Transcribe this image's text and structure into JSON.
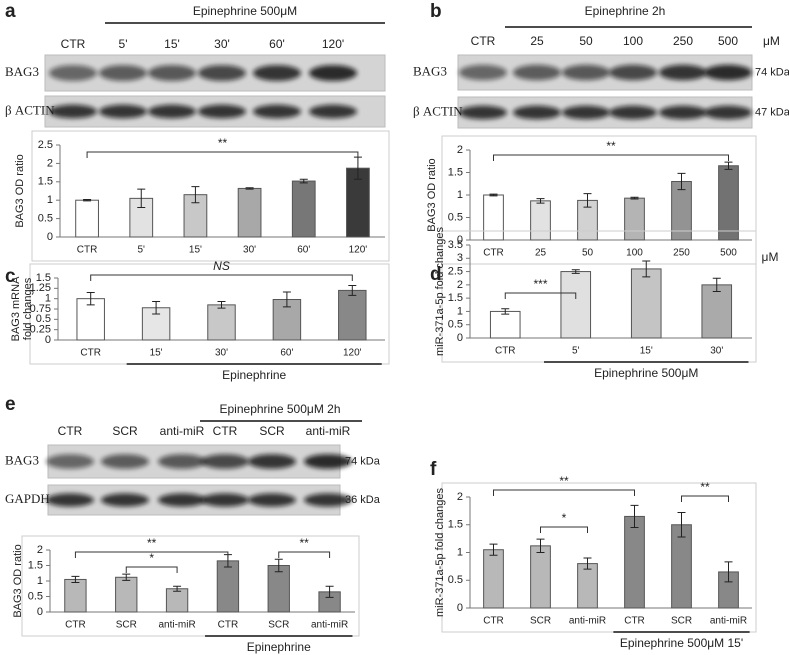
{
  "chart_data": [
    {
      "type": "bar",
      "panel": "a",
      "ylabel": [
        "BAG3  OD ratio"
      ],
      "blot": {
        "header": "Epinephrine 500μM",
        "lanes": [
          "CTR",
          "5'",
          "15'",
          "30'",
          "60'",
          "120'"
        ],
        "rows": [
          {
            "label": "BAG3"
          },
          {
            "label": "β ACTIN"
          }
        ]
      },
      "categories": [
        "CTR",
        "5'",
        "15'",
        "30'",
        "60'",
        "120'"
      ],
      "values": [
        1,
        1.05,
        1.15,
        1.32,
        1.52,
        1.87
      ],
      "errors": [
        0.02,
        0.25,
        0.22,
        0.02,
        0.05,
        0.3
      ],
      "colors": [
        "#ffffff",
        "#e2e2e2",
        "#c8c8c8",
        "#a8a8a8",
        "#777777",
        "#3a3a3a"
      ],
      "ylim": [
        0,
        2.5
      ],
      "yticks": [
        0,
        0.5,
        1,
        1.5,
        2,
        2.5
      ],
      "annotations": [
        {
          "text": "**",
          "from": 0,
          "to": 5
        }
      ]
    },
    {
      "type": "bar",
      "panel": "b",
      "ylabel": [
        "BAG3  OD ratio"
      ],
      "blot": {
        "header": "Epinephrine 2h",
        "lanes": [
          "CTR",
          "25",
          "50",
          "100",
          "250",
          "500"
        ],
        "unit": "μM",
        "rows": [
          {
            "label": "BAG3",
            "size": "74 kDa"
          },
          {
            "label": "β ACTIN",
            "size": "47 kDa"
          }
        ]
      },
      "categories": [
        "CTR",
        "25",
        "50",
        "100",
        "250",
        "500"
      ],
      "x_unit": "μM",
      "values": [
        1,
        0.87,
        0.88,
        0.93,
        1.3,
        1.65
      ],
      "errors": [
        0.02,
        0.05,
        0.15,
        0.02,
        0.18,
        0.08
      ],
      "colors": [
        "#ffffff",
        "#e2e2e2",
        "#d2d2d2",
        "#b4b4b4",
        "#939393",
        "#727272"
      ],
      "ylim": [
        0,
        2
      ],
      "yticks": [
        0,
        0.5,
        1,
        1.5,
        2
      ],
      "annotations": [
        {
          "text": "**",
          "from": 0,
          "to": 5
        }
      ]
    },
    {
      "type": "bar",
      "panel": "c",
      "ylabel": [
        "BAG3 mRNA",
        "fold changes"
      ],
      "categories": [
        "CTR",
        "15'",
        "30'",
        "60'",
        "120'"
      ],
      "values": [
        1,
        0.78,
        0.85,
        0.98,
        1.2
      ],
      "errors": [
        0.15,
        0.15,
        0.08,
        0.18,
        0.12
      ],
      "colors": [
        "#ffffff",
        "#e6e6e6",
        "#c8c8c8",
        "#a8a8a8",
        "#888888"
      ],
      "ylim": [
        0,
        1.5
      ],
      "yticks": [
        0,
        0.25,
        0.5,
        0.75,
        1,
        1.25,
        1.5
      ],
      "annotations": [
        {
          "text": "NS",
          "from": 0,
          "to": 4
        }
      ],
      "group_label": {
        "text": "Epinephrine",
        "from": 1,
        "to": 4
      }
    },
    {
      "type": "bar",
      "panel": "d",
      "ylabel": [
        "miR-371a-5p  fold changes"
      ],
      "categories": [
        "CTR",
        "5'",
        "15'",
        "30'"
      ],
      "values": [
        1,
        2.5,
        2.6,
        2.0
      ],
      "errors": [
        0.1,
        0.07,
        0.3,
        0.25
      ],
      "colors": [
        "#ffffff",
        "#e0e0e0",
        "#c4c4c4",
        "#aaaaaa"
      ],
      "ylim": [
        0,
        3.5
      ],
      "yticks": [
        0,
        0.5,
        1,
        1.5,
        2,
        2.5,
        3,
        3.5
      ],
      "annotations": [
        {
          "text": "***",
          "from": 0,
          "to": 1
        }
      ],
      "group_label": {
        "text": "Epinephrine 500μM",
        "from": 1,
        "to": 3
      }
    },
    {
      "type": "bar",
      "panel": "e",
      "ylabel": [
        "BAG3  OD ratio"
      ],
      "blot": {
        "header": "Epinephrine 500μM 2h",
        "lanes": [
          "CTR",
          "SCR",
          "anti-miR",
          "CTR",
          "SCR",
          "anti-miR"
        ],
        "rows": [
          {
            "label": "BAG3",
            "size": "74 kDa"
          },
          {
            "label": "GAPDH",
            "size": "36 kDa"
          }
        ]
      },
      "categories": [
        "CTR",
        "SCR",
        "anti-miR",
        "CTR",
        "SCR",
        "anti-miR"
      ],
      "values": [
        1.05,
        1.12,
        0.75,
        1.65,
        1.5,
        0.65
      ],
      "errors": [
        0.1,
        0.1,
        0.08,
        0.2,
        0.2,
        0.18
      ],
      "colors": [
        "#b8b8b8",
        "#b8b8b8",
        "#b8b8b8",
        "#888888",
        "#888888",
        "#888888"
      ],
      "ylim": [
        0,
        2
      ],
      "yticks": [
        0,
        0.5,
        1,
        1.5,
        2
      ],
      "annotations": [
        {
          "text": "**",
          "from": 0,
          "to": 3
        },
        {
          "text": "*",
          "from": 1,
          "to": 2
        },
        {
          "text": "**",
          "from": 4,
          "to": 5
        }
      ],
      "group_label": {
        "text": "Epinephrine",
        "from": 3,
        "to": 5
      }
    },
    {
      "type": "bar",
      "panel": "f",
      "ylabel": [
        "miR-371a-5p  fold changes"
      ],
      "categories": [
        "CTR",
        "SCR",
        "anti-miR",
        "CTR",
        "SCR",
        "anti-miR"
      ],
      "values": [
        1.05,
        1.12,
        0.8,
        1.65,
        1.5,
        0.65
      ],
      "errors": [
        0.1,
        0.12,
        0.1,
        0.2,
        0.22,
        0.18
      ],
      "colors": [
        "#b8b8b8",
        "#b8b8b8",
        "#b8b8b8",
        "#888888",
        "#888888",
        "#888888"
      ],
      "ylim": [
        0,
        2
      ],
      "yticks": [
        0,
        0.5,
        1,
        1.5,
        2
      ],
      "annotations": [
        {
          "text": "**",
          "from": 0,
          "to": 3
        },
        {
          "text": "*",
          "from": 1,
          "to": 2
        },
        {
          "text": "**",
          "from": 4,
          "to": 5
        }
      ],
      "group_label": {
        "text": "Epinephrine 500μM 15'",
        "from": 3,
        "to": 5
      }
    }
  ]
}
